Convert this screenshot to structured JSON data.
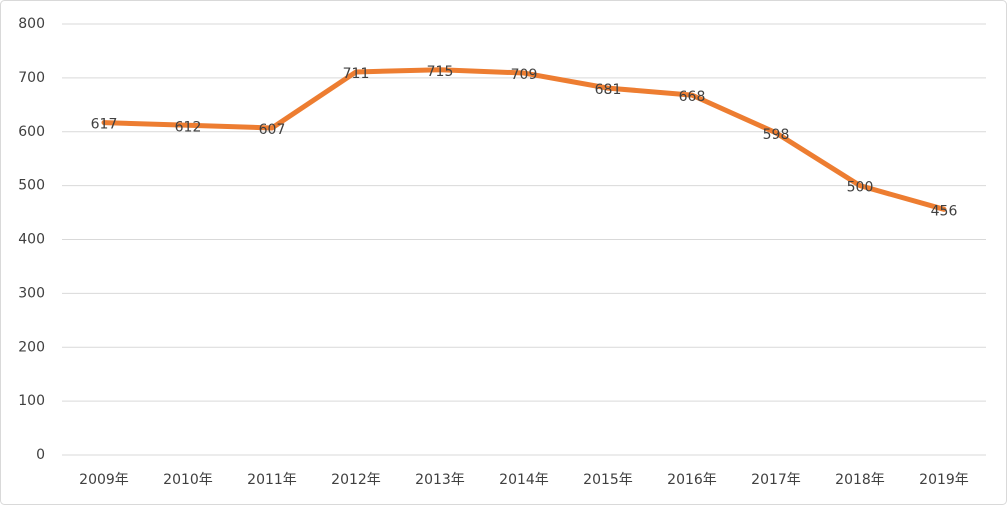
{
  "chart_data": {
    "type": "line",
    "categories": [
      "2009年",
      "2010年",
      "2011年",
      "2012年",
      "2013年",
      "2014年",
      "2015年",
      "2016年",
      "2017年",
      "2018年",
      "2019年"
    ],
    "series": [
      {
        "color": "#ed7d31",
        "values": [
          617,
          612,
          607,
          711,
          715,
          709,
          681,
          668,
          598,
          500,
          456
        ]
      }
    ],
    "ylim": [
      0,
      800
    ],
    "yticks": [
      0,
      100,
      200,
      300,
      400,
      500,
      600,
      700,
      800
    ],
    "grid": true,
    "data_labels": true
  }
}
